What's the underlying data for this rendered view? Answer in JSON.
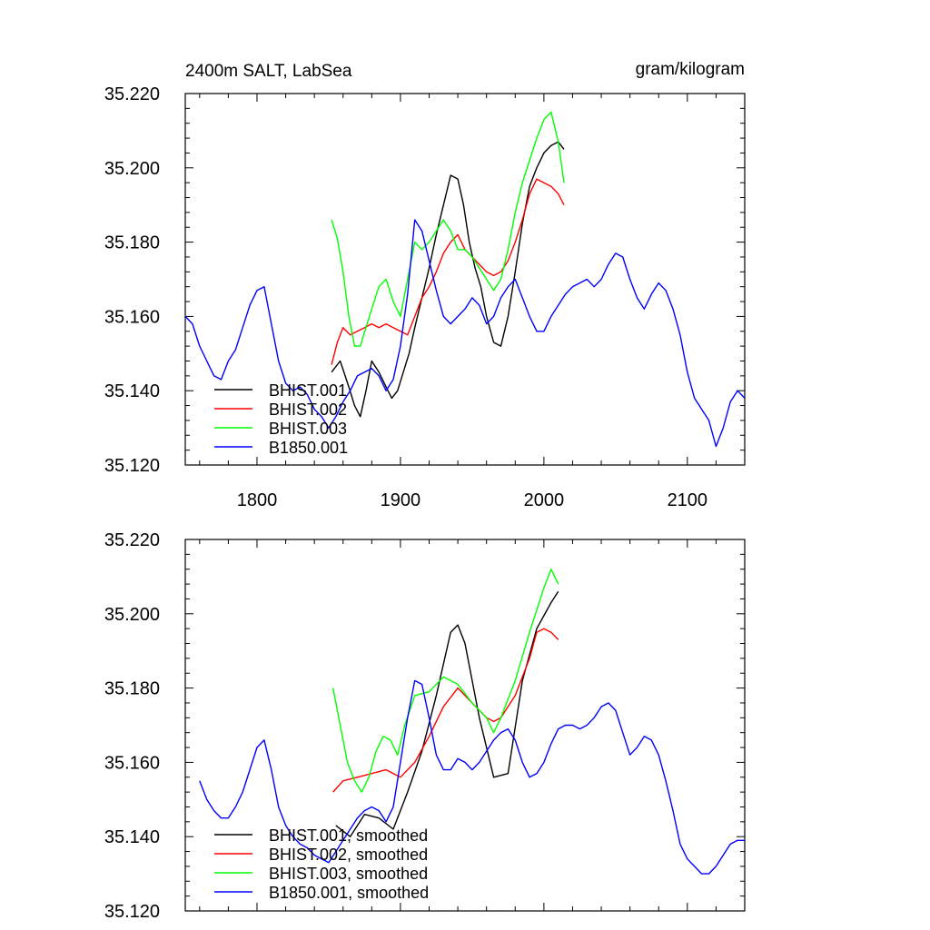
{
  "chart_data": [
    {
      "type": "line",
      "title_left": "2400m SALT, LabSea",
      "title_right": "gram/kilogram",
      "xlim": [
        1750,
        2140
      ],
      "ylim": [
        35.12,
        35.22
      ],
      "xticks": [
        1800,
        1900,
        2000,
        2100
      ],
      "xtick_labels": [
        "1800",
        "1900",
        "2000",
        "2100"
      ],
      "yticks": [
        35.12,
        35.14,
        35.16,
        35.18,
        35.2,
        35.22
      ],
      "ytick_labels": [
        "35.120",
        "35.140",
        "35.160",
        "35.180",
        "35.200",
        "35.220"
      ],
      "legend_position": "bottom-left",
      "series": [
        {
          "name": "BHIST.001",
          "color": "#000000",
          "x": [
            1852,
            1858,
            1864,
            1868,
            1872,
            1876,
            1880,
            1885,
            1890,
            1894,
            1898,
            1902,
            1906,
            1910,
            1915,
            1920,
            1925,
            1930,
            1935,
            1940,
            1944,
            1948,
            1952,
            1956,
            1960,
            1965,
            1970,
            1975,
            1980,
            1985,
            1990,
            1995,
            2000,
            2005,
            2010,
            2014
          ],
          "y": [
            35.145,
            35.148,
            35.141,
            35.136,
            35.133,
            35.14,
            35.148,
            35.145,
            35.141,
            35.138,
            35.14,
            35.145,
            35.15,
            35.157,
            35.165,
            35.173,
            35.182,
            35.19,
            35.198,
            35.197,
            35.19,
            35.18,
            35.173,
            35.168,
            35.16,
            35.153,
            35.152,
            35.16,
            35.172,
            35.185,
            35.195,
            35.2,
            35.204,
            35.206,
            35.207,
            35.205
          ]
        },
        {
          "name": "BHIST.002",
          "color": "#ff0000",
          "x": [
            1852,
            1856,
            1860,
            1865,
            1870,
            1875,
            1880,
            1885,
            1890,
            1895,
            1900,
            1905,
            1910,
            1915,
            1920,
            1925,
            1930,
            1935,
            1940,
            1945,
            1950,
            1955,
            1960,
            1965,
            1970,
            1975,
            1980,
            1985,
            1990,
            1995,
            2000,
            2005,
            2010,
            2014
          ],
          "y": [
            35.147,
            35.153,
            35.157,
            35.155,
            35.156,
            35.157,
            35.158,
            35.157,
            35.158,
            35.157,
            35.156,
            35.155,
            35.16,
            35.165,
            35.168,
            35.172,
            35.177,
            35.18,
            35.182,
            35.178,
            35.176,
            35.174,
            35.172,
            35.171,
            35.172,
            35.175,
            35.18,
            35.186,
            35.193,
            35.197,
            35.196,
            35.195,
            35.193,
            35.19
          ]
        },
        {
          "name": "BHIST.003",
          "color": "#00ff00",
          "x": [
            1852,
            1856,
            1860,
            1864,
            1868,
            1872,
            1876,
            1880,
            1885,
            1890,
            1895,
            1900,
            1905,
            1910,
            1915,
            1920,
            1925,
            1930,
            1935,
            1940,
            1945,
            1950,
            1955,
            1960,
            1965,
            1970,
            1975,
            1980,
            1985,
            1990,
            1995,
            2000,
            2005,
            2010,
            2014
          ],
          "y": [
            35.186,
            35.181,
            35.172,
            35.16,
            35.152,
            35.152,
            35.157,
            35.162,
            35.168,
            35.17,
            35.164,
            35.16,
            35.17,
            35.18,
            35.178,
            35.18,
            35.183,
            35.186,
            35.183,
            35.178,
            35.178,
            35.176,
            35.173,
            35.17,
            35.167,
            35.17,
            35.178,
            35.188,
            35.196,
            35.202,
            35.208,
            35.213,
            35.215,
            35.207,
            35.196
          ]
        },
        {
          "name": "B1850.001",
          "color": "#0000ff",
          "x": [
            1750,
            1755,
            1760,
            1765,
            1770,
            1775,
            1780,
            1785,
            1790,
            1795,
            1800,
            1805,
            1810,
            1815,
            1820,
            1825,
            1830,
            1835,
            1840,
            1845,
            1850,
            1855,
            1860,
            1865,
            1870,
            1875,
            1880,
            1885,
            1890,
            1895,
            1900,
            1905,
            1910,
            1915,
            1920,
            1925,
            1930,
            1935,
            1940,
            1945,
            1950,
            1955,
            1960,
            1965,
            1970,
            1975,
            1980,
            1985,
            1990,
            1995,
            2000,
            2005,
            2010,
            2015,
            2020,
            2025,
            2030,
            2035,
            2040,
            2045,
            2050,
            2055,
            2060,
            2065,
            2070,
            2075,
            2080,
            2085,
            2090,
            2095,
            2100,
            2105,
            2110,
            2115,
            2120,
            2125,
            2130,
            2135,
            2140
          ],
          "y": [
            35.16,
            35.158,
            35.152,
            35.148,
            35.144,
            35.143,
            35.148,
            35.151,
            35.157,
            35.163,
            35.167,
            35.168,
            35.158,
            35.148,
            35.142,
            35.14,
            35.141,
            35.139,
            35.135,
            35.133,
            35.13,
            35.133,
            35.137,
            35.14,
            35.144,
            35.145,
            35.146,
            35.144,
            35.14,
            35.143,
            35.152,
            35.166,
            35.186,
            35.183,
            35.175,
            35.167,
            35.16,
            35.158,
            35.16,
            35.162,
            35.165,
            35.163,
            35.158,
            35.16,
            35.165,
            35.168,
            35.17,
            35.165,
            35.16,
            35.156,
            35.156,
            35.16,
            35.163,
            35.166,
            35.168,
            35.169,
            35.17,
            35.168,
            35.17,
            35.174,
            35.177,
            35.176,
            35.17,
            35.165,
            35.162,
            35.166,
            35.169,
            35.167,
            35.162,
            35.155,
            35.145,
            35.138,
            35.135,
            35.132,
            35.125,
            35.13,
            35.137,
            35.14,
            35.138
          ]
        }
      ]
    },
    {
      "type": "line",
      "xlim": [
        1750,
        2140
      ],
      "ylim": [
        35.12,
        35.22
      ],
      "xticks": [
        1800,
        1900,
        2000,
        2100
      ],
      "yticks": [
        35.12,
        35.14,
        35.16,
        35.18,
        35.2,
        35.22
      ],
      "ytick_labels": [
        "35.120",
        "35.140",
        "35.160",
        "35.180",
        "35.200",
        "35.220"
      ],
      "legend_position": "bottom-left",
      "series": [
        {
          "name": "BHIST.001, smoothed",
          "color": "#000000",
          "x": [
            1855,
            1865,
            1875,
            1885,
            1895,
            1905,
            1915,
            1925,
            1935,
            1940,
            1945,
            1955,
            1965,
            1975,
            1985,
            1995,
            2005,
            2010
          ],
          "y": [
            35.143,
            35.14,
            35.146,
            35.145,
            35.142,
            35.152,
            35.163,
            35.178,
            35.195,
            35.197,
            35.192,
            35.172,
            35.156,
            35.157,
            35.182,
            35.196,
            35.203,
            35.206
          ]
        },
        {
          "name": "BHIST.002, smoothed",
          "color": "#ff0000",
          "x": [
            1853,
            1860,
            1870,
            1880,
            1890,
            1900,
            1910,
            1920,
            1930,
            1940,
            1950,
            1955,
            1960,
            1965,
            1970,
            1980,
            1990,
            1995,
            2000,
            2005,
            2010
          ],
          "y": [
            35.152,
            35.155,
            35.156,
            35.157,
            35.158,
            35.156,
            35.16,
            35.167,
            35.175,
            35.18,
            35.176,
            35.174,
            35.172,
            35.171,
            35.172,
            35.178,
            35.188,
            35.195,
            35.196,
            35.195,
            35.193
          ]
        },
        {
          "name": "BHIST.003, smoothed",
          "color": "#00ff00",
          "x": [
            1853,
            1858,
            1863,
            1868,
            1873,
            1878,
            1883,
            1888,
            1893,
            1898,
            1903,
            1910,
            1920,
            1930,
            1940,
            1950,
            1960,
            1965,
            1970,
            1980,
            1990,
            2000,
            2005,
            2010
          ],
          "y": [
            35.18,
            35.17,
            35.16,
            35.155,
            35.152,
            35.156,
            35.163,
            35.167,
            35.166,
            35.162,
            35.17,
            35.178,
            35.179,
            35.183,
            35.181,
            35.176,
            35.172,
            35.168,
            35.172,
            35.182,
            35.195,
            35.207,
            35.212,
            35.208
          ]
        },
        {
          "name": "B1850.001, smoothed",
          "color": "#0000ff",
          "x": [
            1760,
            1765,
            1770,
            1775,
            1780,
            1785,
            1790,
            1795,
            1800,
            1805,
            1810,
            1815,
            1820,
            1825,
            1830,
            1835,
            1840,
            1845,
            1850,
            1855,
            1860,
            1865,
            1870,
            1875,
            1880,
            1885,
            1890,
            1895,
            1900,
            1905,
            1910,
            1915,
            1920,
            1925,
            1930,
            1935,
            1940,
            1945,
            1950,
            1955,
            1960,
            1965,
            1970,
            1975,
            1980,
            1985,
            1990,
            1995,
            2000,
            2005,
            2010,
            2015,
            2020,
            2025,
            2030,
            2035,
            2040,
            2045,
            2050,
            2055,
            2060,
            2065,
            2070,
            2075,
            2080,
            2085,
            2090,
            2095,
            2100,
            2105,
            2110,
            2115,
            2120,
            2125,
            2130,
            2135,
            2140
          ],
          "y": [
            35.155,
            35.15,
            35.147,
            35.145,
            35.145,
            35.148,
            35.152,
            35.158,
            35.164,
            35.166,
            35.158,
            35.148,
            35.143,
            35.14,
            35.138,
            35.137,
            35.135,
            35.134,
            35.133,
            35.136,
            35.139,
            35.142,
            35.145,
            35.147,
            35.148,
            35.147,
            35.144,
            35.148,
            35.16,
            35.172,
            35.182,
            35.181,
            35.172,
            35.162,
            35.158,
            35.158,
            35.161,
            35.16,
            35.158,
            35.16,
            35.163,
            35.166,
            35.168,
            35.169,
            35.166,
            35.16,
            35.156,
            35.157,
            35.16,
            35.165,
            35.169,
            35.17,
            35.17,
            35.169,
            35.17,
            35.172,
            35.175,
            35.176,
            35.174,
            35.168,
            35.162,
            35.164,
            35.167,
            35.166,
            35.162,
            35.155,
            35.147,
            35.138,
            35.134,
            35.132,
            35.13,
            35.13,
            35.132,
            35.135,
            35.138,
            35.139,
            35.139
          ]
        }
      ]
    }
  ]
}
